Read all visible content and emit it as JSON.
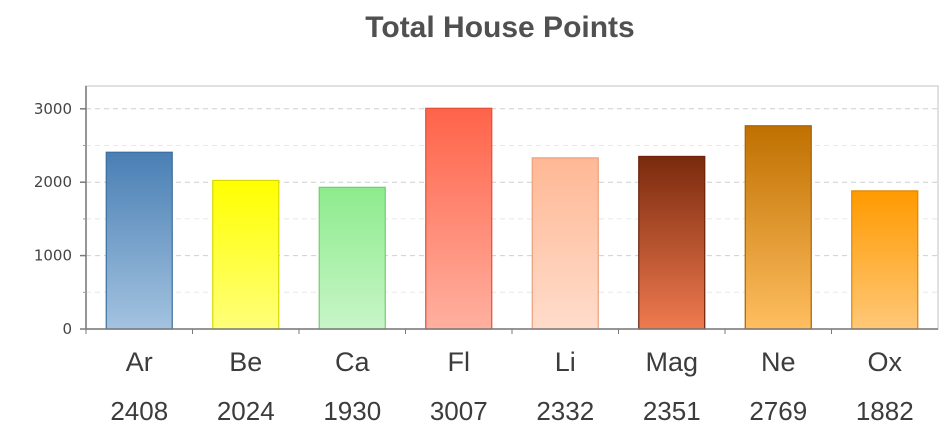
{
  "chart_data": {
    "type": "bar",
    "title": "Total House Points",
    "xlabel": "",
    "ylabel": "",
    "ylim": [
      0,
      3300
    ],
    "yticks": [
      0,
      1000,
      2000,
      3000
    ],
    "grid": true,
    "categories": [
      "Ar",
      "Be",
      "Ca",
      "Fl",
      "Li",
      "Mag",
      "Ne",
      "Ox"
    ],
    "values": [
      2408,
      2024,
      1930,
      3007,
      2332,
      2351,
      2769,
      1882
    ],
    "value_labels": [
      "2408",
      "2024",
      "1930",
      "3007",
      "2332",
      "2351",
      "2769",
      "1882"
    ],
    "bar_colors": [
      {
        "top": "#4a7fb4",
        "bottom": "#a3c3e0",
        "stroke": "#3d6f9e"
      },
      {
        "top": "#ffff00",
        "bottom": "#ffff7a",
        "stroke": "#d8d800"
      },
      {
        "top": "#8deb8d",
        "bottom": "#c8f5c8",
        "stroke": "#6fcf6f"
      },
      {
        "top": "#ff6349",
        "bottom": "#ffb0a0",
        "stroke": "#e0503a"
      },
      {
        "top": "#ffb895",
        "bottom": "#ffdccb",
        "stroke": "#eea07c"
      },
      {
        "top": "#7a2a0d",
        "bottom": "#ef7a50",
        "stroke": "#6a220a"
      },
      {
        "top": "#bf7000",
        "bottom": "#ffbe60",
        "stroke": "#a86200"
      },
      {
        "top": "#ff9a00",
        "bottom": "#ffc878",
        "stroke": "#e08600"
      }
    ]
  }
}
